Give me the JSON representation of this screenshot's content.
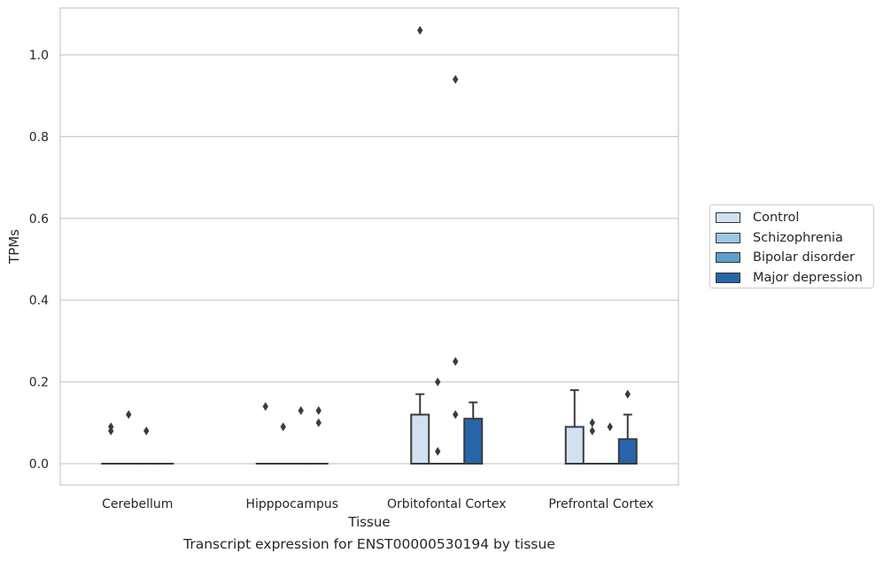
{
  "chart_data": {
    "type": "box",
    "caption": "Transcript expression for ENST00000530194 by tissue",
    "xlabel": "Tissue",
    "ylabel": "TPMs",
    "ylim": [
      -0.05,
      1.12
    ],
    "yticks": [
      0.0,
      0.2,
      0.4,
      0.6,
      0.8,
      1.0
    ],
    "ytick_labels": [
      "0.0",
      "0.2",
      "0.4",
      "0.6",
      "0.8",
      "1.0"
    ],
    "grid": "horizontal",
    "legend_position": "right",
    "categories": [
      "Cerebellum",
      "Hipppocampus",
      "Orbitofontal Cortex",
      "Prefrontal Cortex"
    ],
    "series": [
      {
        "name": "Control",
        "color": "#d1e1f1",
        "boxes": [
          {
            "q1": 0,
            "median": 0,
            "q3": 0,
            "whislo": 0,
            "whishi": 0,
            "fliers": [
              0.08,
              0.09
            ]
          },
          {
            "q1": 0,
            "median": 0,
            "q3": 0,
            "whislo": 0,
            "whishi": 0,
            "fliers": [
              0.14
            ]
          },
          {
            "q1": 0,
            "median": 0,
            "q3": 0.12,
            "whislo": 0,
            "whishi": 0.17,
            "fliers": [
              1.06
            ]
          },
          {
            "q1": 0,
            "median": 0,
            "q3": 0.09,
            "whislo": 0,
            "whishi": 0.18,
            "fliers": []
          }
        ]
      },
      {
        "name": "Schizophrenia",
        "color": "#9ac8e0",
        "boxes": [
          {
            "q1": 0,
            "median": 0,
            "q3": 0,
            "whislo": 0,
            "whishi": 0,
            "fliers": [
              0.12
            ]
          },
          {
            "q1": 0,
            "median": 0,
            "q3": 0,
            "whislo": 0,
            "whishi": 0,
            "fliers": [
              0.09
            ]
          },
          {
            "q1": 0,
            "median": 0,
            "q3": 0,
            "whislo": 0,
            "whishi": 0,
            "fliers": [
              0.2,
              0.03
            ]
          },
          {
            "q1": 0,
            "median": 0,
            "q3": 0,
            "whislo": 0,
            "whishi": 0,
            "fliers": [
              0.1,
              0.08
            ]
          }
        ]
      },
      {
        "name": "Bipolar disorder",
        "color": "#5aa0cd",
        "boxes": [
          {
            "q1": 0,
            "median": 0,
            "q3": 0,
            "whislo": 0,
            "whishi": 0,
            "fliers": [
              0.08
            ]
          },
          {
            "q1": 0,
            "median": 0,
            "q3": 0,
            "whislo": 0,
            "whishi": 0,
            "fliers": [
              0.13
            ]
          },
          {
            "q1": 0,
            "median": 0,
            "q3": 0,
            "whislo": 0,
            "whishi": 0,
            "fliers": [
              0.94,
              0.25,
              0.12
            ]
          },
          {
            "q1": 0,
            "median": 0,
            "q3": 0,
            "whislo": 0,
            "whishi": 0,
            "fliers": [
              0.09
            ]
          }
        ]
      },
      {
        "name": "Major depression",
        "color": "#2765ab",
        "boxes": [
          {
            "q1": 0,
            "median": 0,
            "q3": 0,
            "whislo": 0,
            "whishi": 0,
            "fliers": []
          },
          {
            "q1": 0,
            "median": 0,
            "q3": 0,
            "whislo": 0,
            "whishi": 0,
            "fliers": [
              0.13,
              0.1
            ]
          },
          {
            "q1": 0,
            "median": 0,
            "q3": 0.11,
            "whislo": 0,
            "whishi": 0.15,
            "fliers": []
          },
          {
            "q1": 0,
            "median": 0,
            "q3": 0.06,
            "whislo": 0,
            "whishi": 0.12,
            "fliers": [
              0.17
            ]
          }
        ]
      }
    ]
  }
}
